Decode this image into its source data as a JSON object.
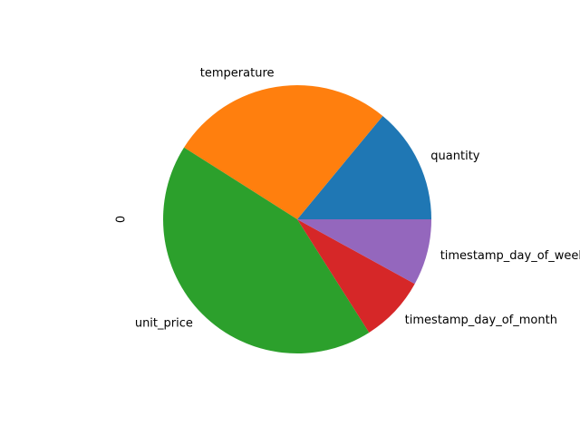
{
  "chart_data": {
    "type": "pie",
    "ylabel": "0",
    "start_angle_deg": 0,
    "direction": "counterclockwise",
    "slices": [
      {
        "label": "quantity",
        "value": 0.14,
        "color": "#1f77b4"
      },
      {
        "label": "temperature",
        "value": 0.27,
        "color": "#ff7f0e"
      },
      {
        "label": "unit_price",
        "value": 0.43,
        "color": "#2ca02c"
      },
      {
        "label": "timestamp_day_of_month",
        "value": 0.08,
        "color": "#d62728"
      },
      {
        "label": "timestamp_day_of_week",
        "value": 0.08,
        "color": "#9467bd"
      }
    ]
  }
}
